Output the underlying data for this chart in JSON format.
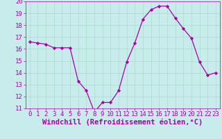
{
  "x": [
    0,
    1,
    2,
    3,
    4,
    5,
    6,
    7,
    8,
    9,
    10,
    11,
    12,
    13,
    14,
    15,
    16,
    17,
    18,
    19,
    20,
    21,
    22,
    23
  ],
  "y": [
    16.6,
    16.5,
    16.4,
    16.1,
    16.1,
    16.1,
    13.3,
    12.5,
    10.7,
    11.5,
    11.5,
    12.5,
    14.9,
    16.5,
    18.5,
    19.3,
    19.6,
    19.6,
    18.6,
    17.7,
    16.9,
    14.9,
    13.8,
    14.0
  ],
  "xlim": [
    -0.5,
    23.5
  ],
  "ylim": [
    11,
    20
  ],
  "yticks": [
    11,
    12,
    13,
    14,
    15,
    16,
    17,
    18,
    19,
    20
  ],
  "xticks": [
    0,
    1,
    2,
    3,
    4,
    5,
    6,
    7,
    8,
    9,
    10,
    11,
    12,
    13,
    14,
    15,
    16,
    17,
    18,
    19,
    20,
    21,
    22,
    23
  ],
  "xlabel": "Windchill (Refroidissement éolien,°C)",
  "line_color": "#aa00aa",
  "marker_color": "#aa00aa",
  "bg_color": "#c8ecec",
  "grid_color": "#aaddcc",
  "label_color": "#aa00aa",
  "tick_fontsize": 6.5,
  "xlabel_fontsize": 7.5
}
